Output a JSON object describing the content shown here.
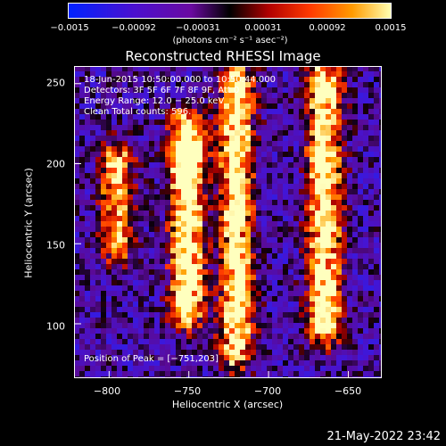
{
  "colorbar": {
    "ticks": [
      "−0.0015",
      "−0.00092",
      "−0.00031",
      "0.00031",
      "0.00092",
      "0.0015"
    ],
    "units": "(photons cm⁻² s⁻¹ asec⁻²)"
  },
  "title": "Reconstructed RHESSI Image",
  "annotations": {
    "time": "18‑Jun‑2015 10:50:00.000 to 10:50:44.000",
    "detectors": "Detectors: 3F 5F 6F 7F 8F 9F, Att 0",
    "energy": "Energy Range: 12.0 − 25.0 keV",
    "clean": "Clean     Total counts: 596.",
    "peak": "Position of Peak = [−751,203]"
  },
  "axes": {
    "xlabel": "Heliocentric X (arcsec)",
    "ylabel": "Heliocentric Y (arcsec)",
    "xticks": [
      "−800",
      "−750",
      "−700",
      "−650"
    ],
    "yticks": [
      "250",
      "200",
      "150",
      "100"
    ]
  },
  "timestamp": "21‑May‑2022 23:42",
  "chart_data": {
    "type": "heatmap",
    "title": "Reconstructed RHESSI Image",
    "xlabel": "Heliocentric X (arcsec)",
    "ylabel": "Heliocentric Y (arcsec)",
    "xlim": [
      -822,
      -629
    ],
    "ylim": [
      66,
      261
    ],
    "colorbar_range": [
      -0.0015,
      0.0015
    ],
    "colormap": "blue-purple-black-red-orange-yellow-white",
    "peak": [
      -751,
      203
    ],
    "ridges": [
      {
        "x": -795,
        "y_from": 150,
        "y_to": 200,
        "level": 0.7
      },
      {
        "x": -751,
        "y_from": 110,
        "y_to": 220,
        "level": 1.0
      },
      {
        "x": -720,
        "y_from": 85,
        "y_to": 250,
        "level": 0.9
      },
      {
        "x": -665,
        "y_from": 100,
        "y_to": 250,
        "level": 0.95
      }
    ]
  }
}
